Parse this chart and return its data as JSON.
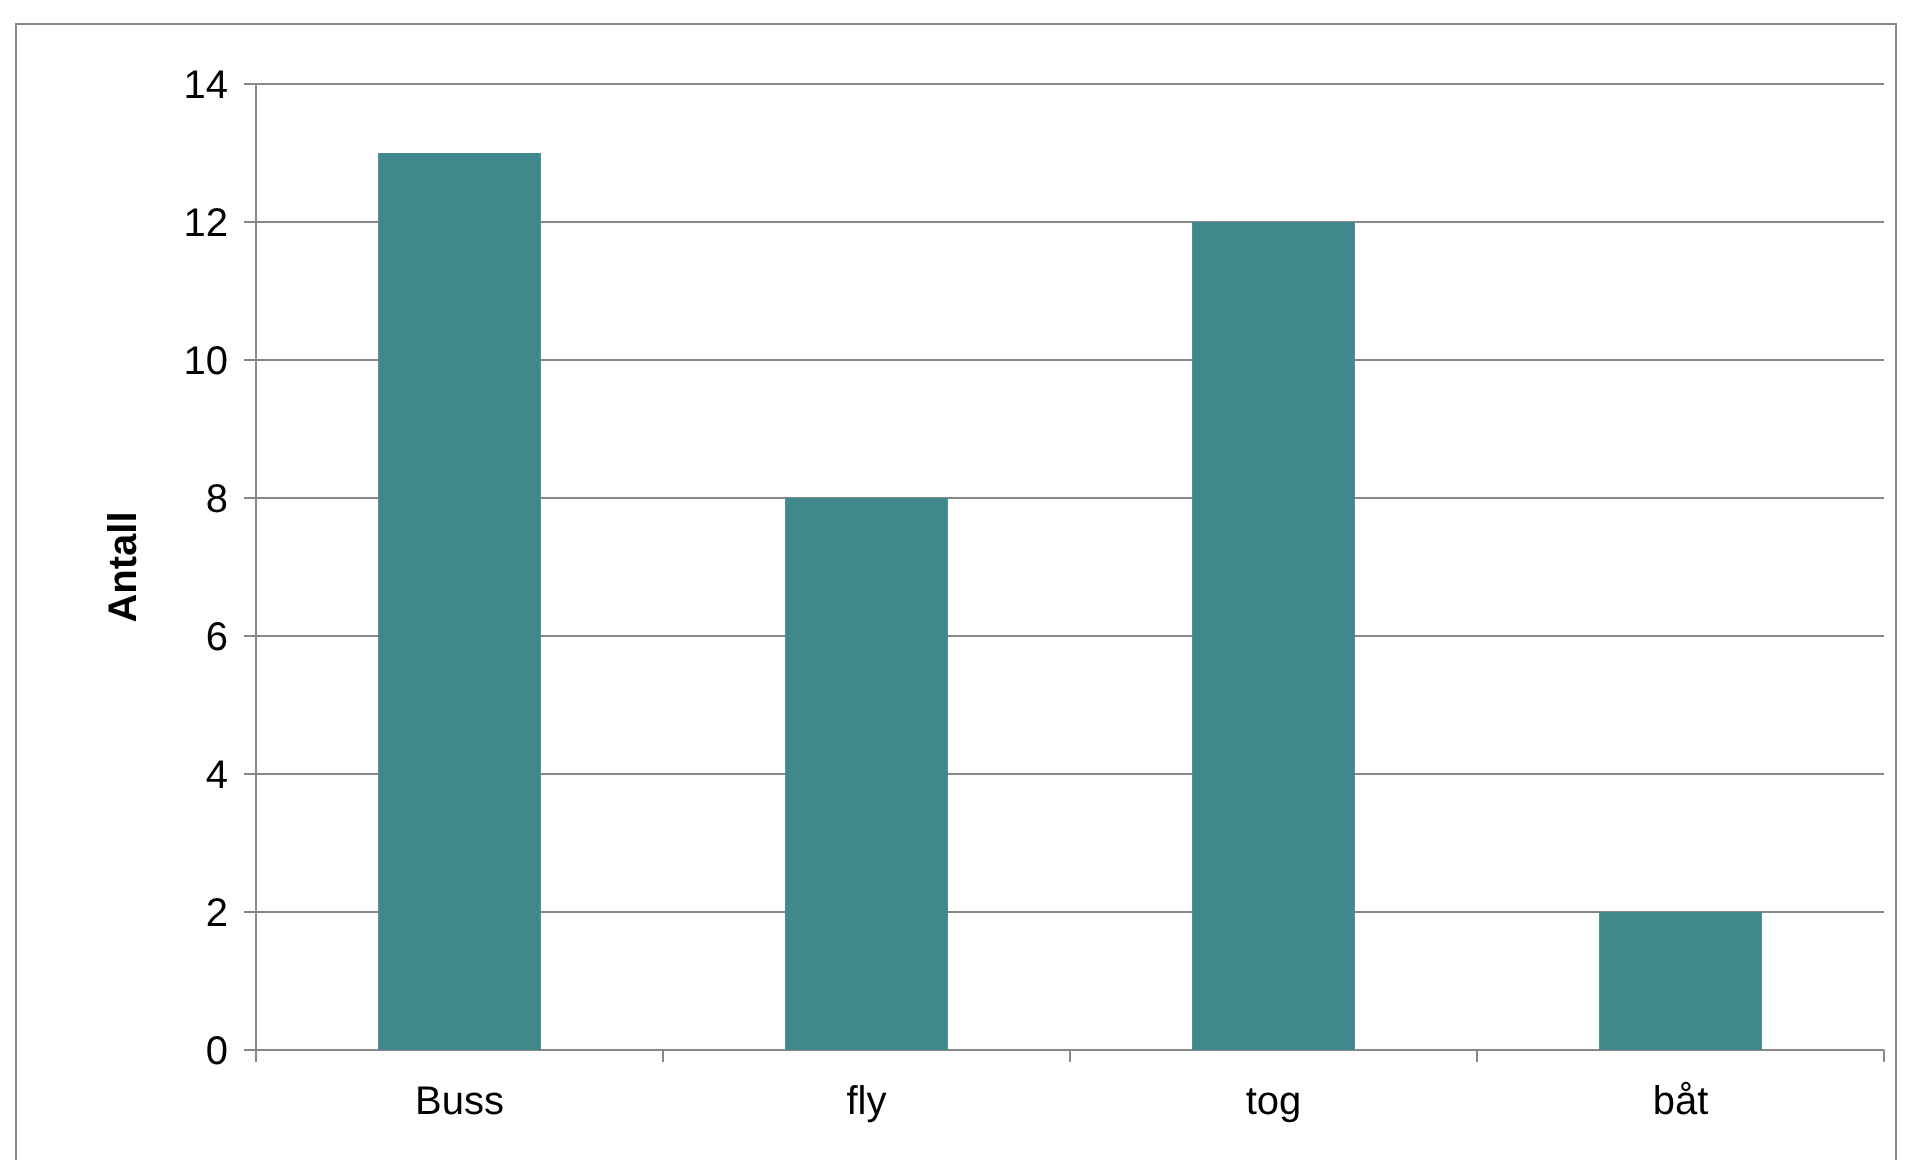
{
  "chart_data": {
    "type": "bar",
    "ylabel": "Antall",
    "categories": [
      "Buss",
      "fly",
      "tog",
      "båt"
    ],
    "values": [
      13,
      8,
      12,
      2
    ],
    "color": "#41888c",
    "ylim": [
      0,
      14
    ],
    "yticks": [
      0,
      2,
      4,
      6,
      8,
      10,
      12,
      14
    ],
    "grid": "y"
  }
}
